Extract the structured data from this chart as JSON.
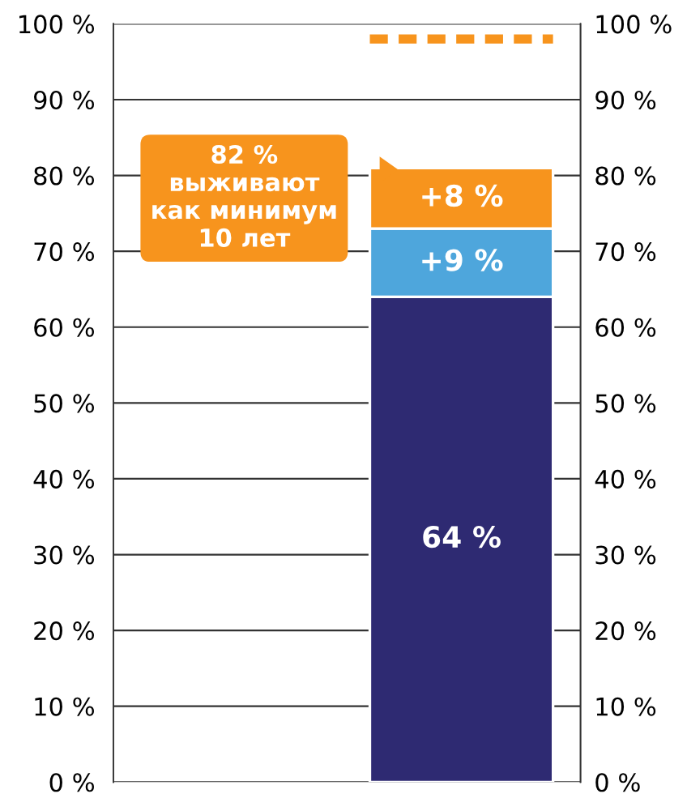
{
  "chart_data": {
    "type": "bar",
    "stacked": true,
    "categories": [
      null
    ],
    "series": [
      {
        "color": "#2e2a72",
        "values": [
          64
        ],
        "value_labels": [
          "64 %"
        ]
      },
      {
        "color": "#4ea6dc",
        "values": [
          9
        ],
        "value_labels": [
          "+9 %"
        ]
      },
      {
        "color": "#f7941d",
        "values": [
          8
        ],
        "value_labels": [
          "+8 %"
        ]
      }
    ],
    "ylim": [
      0,
      100
    ],
    "y2lim": [
      0,
      100
    ],
    "yticks": [
      {
        "value": 0,
        "label": "0 %"
      },
      {
        "value": 10,
        "label": "10 %"
      },
      {
        "value": 20,
        "label": "20 %"
      },
      {
        "value": 30,
        "label": "30 %"
      },
      {
        "value": 40,
        "label": "40 %"
      },
      {
        "value": 50,
        "label": "50 %"
      },
      {
        "value": 60,
        "label": "60 %"
      },
      {
        "value": 70,
        "label": "70 %"
      },
      {
        "value": 80,
        "label": "80 %"
      },
      {
        "value": 90,
        "label": "90 %"
      },
      {
        "value": 100,
        "label": "100 %"
      }
    ],
    "y2ticks": [
      {
        "value": 0,
        "label": "0 %"
      },
      {
        "value": 10,
        "label": "10 %"
      },
      {
        "value": 20,
        "label": "20 %"
      },
      {
        "value": 30,
        "label": "30 %"
      },
      {
        "value": 40,
        "label": "40 %"
      },
      {
        "value": 50,
        "label": "50 %"
      },
      {
        "value": 60,
        "label": "60 %"
      },
      {
        "value": 70,
        "label": "70 %"
      },
      {
        "value": 80,
        "label": "80 %"
      },
      {
        "value": 90,
        "label": "90 %"
      },
      {
        "value": 100,
        "label": "100 %"
      }
    ],
    "grid": "y",
    "ref_lines": [
      {
        "axis": "y",
        "value": 98,
        "color": "#f7941d",
        "line_style": "dashed"
      }
    ],
    "annotations": [
      "82 %\nвыживают\nкак минимум\n10 лет"
    ]
  }
}
